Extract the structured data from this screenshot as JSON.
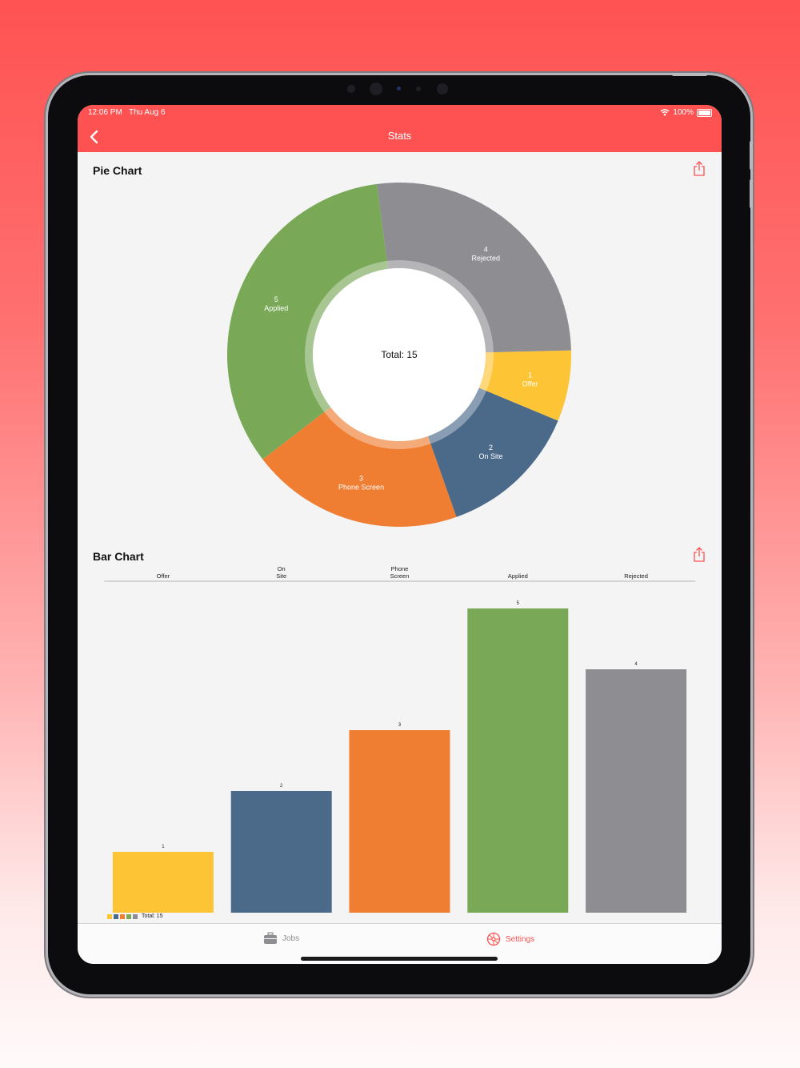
{
  "status": {
    "time": "12:06 PM",
    "date": "Thu Aug 6",
    "battery": "100%"
  },
  "nav": {
    "title": "Stats",
    "back_icon": "chevron-left-icon"
  },
  "pie": {
    "title": "Pie Chart",
    "center_label": "Total: 15",
    "share_icon": "share-icon"
  },
  "bar": {
    "title": "Bar Chart",
    "share_icon": "share-icon",
    "legend_total": "Total: 15"
  },
  "chart_data": [
    {
      "type": "pie",
      "center_text": "Total: 15",
      "categories": [
        "Offer",
        "On Site",
        "Phone Screen",
        "Applied",
        "Rejected"
      ],
      "values": [
        1,
        2,
        3,
        5,
        4
      ],
      "colors": [
        "#fdc435",
        "#4b6a8a",
        "#ef7e32",
        "#79a856",
        "#8e8e92"
      ]
    },
    {
      "type": "bar",
      "categories": [
        "Offer",
        "On Site",
        "Phone Screen",
        "Applied",
        "Rejected"
      ],
      "values": [
        1,
        2,
        3,
        5,
        4
      ],
      "colors": [
        "#fdc435",
        "#4b6a8a",
        "#ef7e32",
        "#79a856",
        "#8e8e92"
      ],
      "legend_total": "Total: 15"
    }
  ],
  "tabs": [
    {
      "label": "Jobs",
      "icon": "briefcase-icon",
      "active": false
    },
    {
      "label": "Settings",
      "icon": "settings-gear-icon",
      "active": true
    }
  ],
  "colors": {
    "accent": "#fe5151",
    "inactive_tab": "#8e8e92"
  }
}
